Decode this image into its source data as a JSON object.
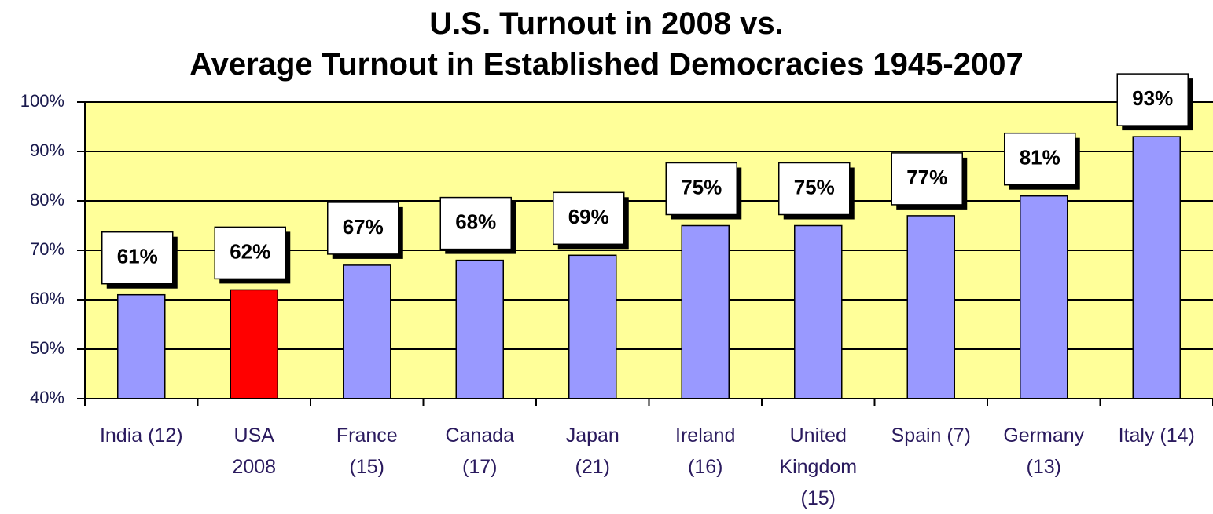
{
  "chart_data": {
    "type": "bar",
    "title": "U.S. Turnout in 2008 vs.\nAverage Turnout in Established Democracies 1945-2007",
    "categories": [
      "India (12)",
      "USA\n2008",
      "France\n(15)",
      "Canada\n(17)",
      "Japan\n(21)",
      "Ireland\n(16)",
      "United\nKingdom\n(15)",
      "Spain (7)",
      "Germany\n(13)",
      "Italy (14)"
    ],
    "values": [
      61,
      62,
      67,
      68,
      69,
      75,
      75,
      77,
      81,
      93
    ],
    "value_labels": [
      "61%",
      "62%",
      "67%",
      "68%",
      "69%",
      "75%",
      "75%",
      "77%",
      "81%",
      "93%"
    ],
    "colors": [
      "#9999ff",
      "#ff0000",
      "#9999ff",
      "#9999ff",
      "#9999ff",
      "#9999ff",
      "#9999ff",
      "#9999ff",
      "#9999ff",
      "#9999ff"
    ],
    "ylim": [
      40,
      100
    ],
    "yticks": [
      {
        "value": 40,
        "label": "40%"
      },
      {
        "value": 50,
        "label": "50%"
      },
      {
        "value": 60,
        "label": "60%"
      },
      {
        "value": 70,
        "label": "70%"
      },
      {
        "value": 80,
        "label": "80%"
      },
      {
        "value": 90,
        "label": "90%"
      },
      {
        "value": 100,
        "label": "100%"
      }
    ],
    "grid": true,
    "plot_background": "#ffff99"
  }
}
